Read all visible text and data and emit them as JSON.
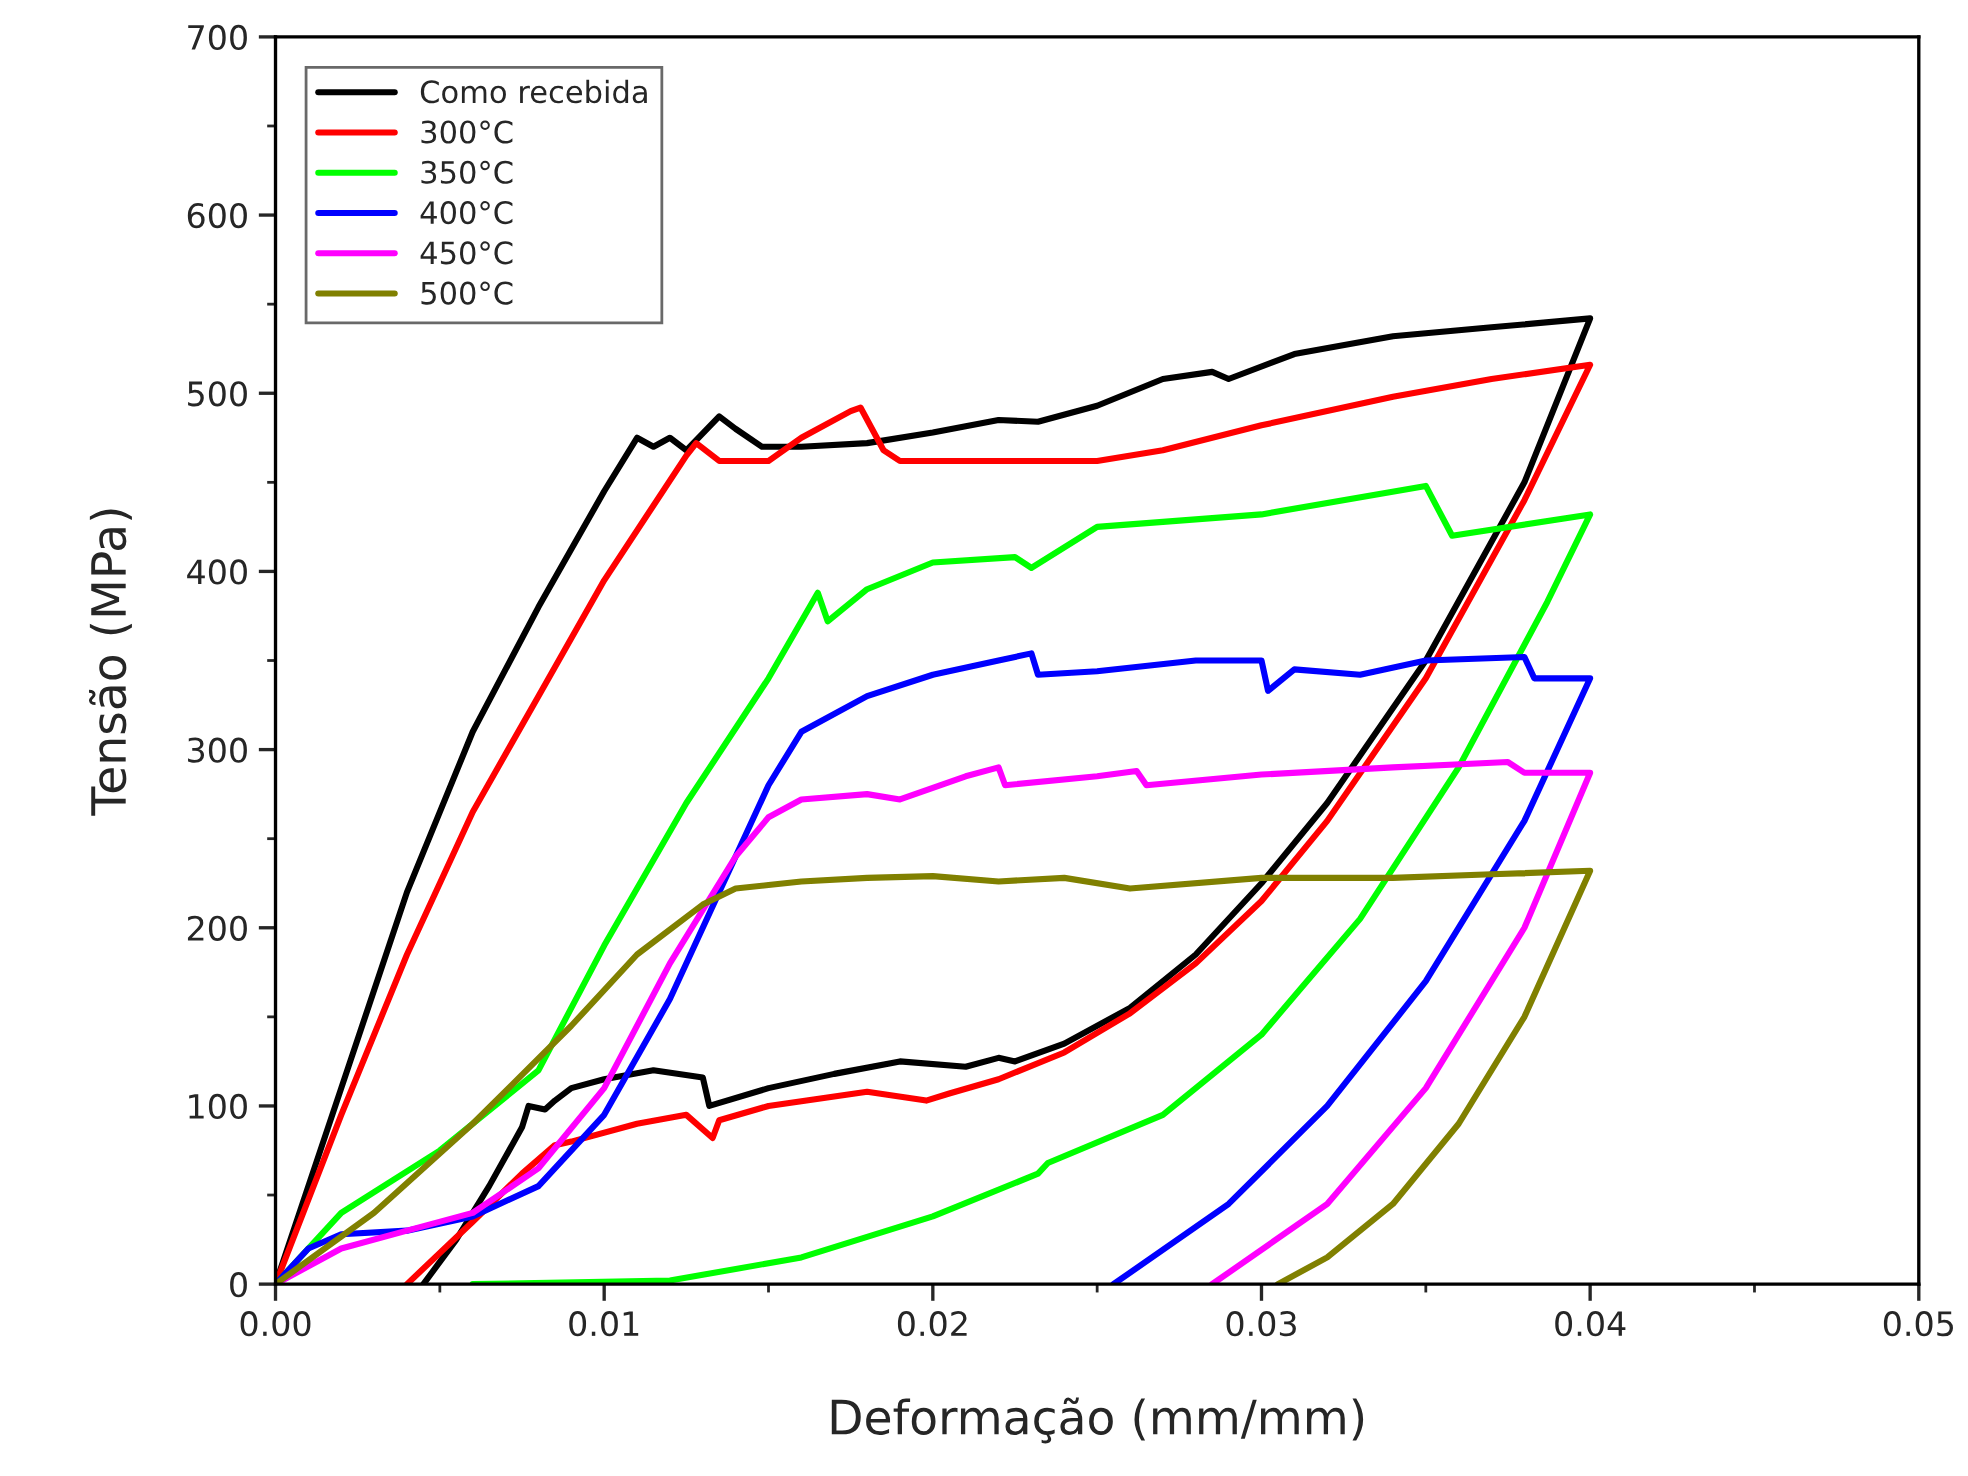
{
  "chart_data": {
    "type": "line",
    "xlabel": "Deformação (mm/mm)",
    "ylabel": "Tensão (MPa)",
    "xlim": [
      0,
      0.05
    ],
    "ylim": [
      0,
      700
    ],
    "xticks": [
      {
        "value": 0,
        "label": "0.00"
      },
      {
        "value": 0.01,
        "label": "0.01"
      },
      {
        "value": 0.02,
        "label": "0.02"
      },
      {
        "value": 0.03,
        "label": "0.03"
      },
      {
        "value": 0.04,
        "label": "0.04"
      },
      {
        "value": 0.05,
        "label": "0.05"
      }
    ],
    "yticks": [
      0,
      100,
      200,
      300,
      400,
      500,
      600,
      700
    ],
    "grid": false,
    "legend": "top left",
    "marker": "none",
    "line_style": "solid",
    "series": [
      {
        "name": "Como recebida",
        "color": "#000000",
        "x": [
          0,
          0.002,
          0.004,
          0.006,
          0.008,
          0.01,
          0.011,
          0.0115,
          0.012,
          0.0125,
          0.0135,
          0.014,
          0.0148,
          0.016,
          0.018,
          0.02,
          0.022,
          0.0232,
          0.025,
          0.027,
          0.0285,
          0.029,
          0.031,
          0.034,
          0.037,
          0.04,
          0.038,
          0.035,
          0.032,
          0.03,
          0.028,
          0.026,
          0.024,
          0.0225,
          0.022,
          0.021,
          0.019,
          0.017,
          0.015,
          0.0132,
          0.013,
          0.0115,
          0.01,
          0.009,
          0.0085,
          0.0082,
          0.0077,
          0.0075,
          0.0065,
          0.0055,
          0.0045
        ],
        "values": [
          0,
          110,
          220,
          310,
          380,
          445,
          475,
          470,
          475,
          468,
          487,
          480,
          470,
          470,
          472,
          478,
          485,
          484,
          493,
          508,
          512,
          508,
          522,
          532,
          537,
          542,
          450,
          350,
          270,
          225,
          185,
          155,
          135,
          125,
          127,
          122,
          125,
          118,
          110,
          100,
          116,
          120,
          115,
          110,
          103,
          98,
          100,
          88,
          55,
          25,
          0
        ]
      },
      {
        "name": "300°C",
        "color": "#ff0000",
        "x": [
          0,
          0.002,
          0.004,
          0.006,
          0.008,
          0.01,
          0.0125,
          0.0128,
          0.0135,
          0.015,
          0.016,
          0.0175,
          0.0178,
          0.0185,
          0.019,
          0.022,
          0.025,
          0.027,
          0.03,
          0.034,
          0.037,
          0.04,
          0.038,
          0.035,
          0.032,
          0.03,
          0.028,
          0.026,
          0.024,
          0.022,
          0.0205,
          0.0198,
          0.018,
          0.015,
          0.0135,
          0.0133,
          0.0125,
          0.011,
          0.009,
          0.0085,
          0.0075,
          0.006,
          0.004
        ],
        "values": [
          0,
          95,
          185,
          265,
          330,
          395,
          465,
          472,
          462,
          462,
          475,
          490,
          492,
          468,
          462,
          462,
          462,
          468,
          482,
          498,
          508,
          516,
          440,
          340,
          260,
          215,
          180,
          152,
          130,
          115,
          107,
          103,
          108,
          100,
          92,
          82,
          95,
          90,
          80,
          78,
          62,
          35,
          0
        ]
      },
      {
        "name": "350°C",
        "color": "#00ff00",
        "x": [
          0,
          0.002,
          0.005,
          0.008,
          0.01,
          0.0125,
          0.015,
          0.0165,
          0.0168,
          0.018,
          0.02,
          0.0225,
          0.023,
          0.025,
          0.03,
          0.035,
          0.0358,
          0.04,
          0.0387,
          0.036,
          0.033,
          0.03,
          0.027,
          0.0235,
          0.0232,
          0.02,
          0.016,
          0.012,
          0.006
        ],
        "values": [
          0,
          40,
          75,
          120,
          190,
          270,
          340,
          388,
          372,
          390,
          405,
          408,
          402,
          425,
          432,
          448,
          420,
          432,
          383,
          290,
          205,
          140,
          95,
          68,
          62,
          38,
          15,
          2,
          0
        ]
      },
      {
        "name": "400°C",
        "color": "#0000ff",
        "x": [
          0,
          0.001,
          0.002,
          0.004,
          0.006,
          0.008,
          0.01,
          0.012,
          0.014,
          0.015,
          0.016,
          0.018,
          0.02,
          0.022,
          0.023,
          0.0232,
          0.025,
          0.028,
          0.03,
          0.0302,
          0.031,
          0.033,
          0.035,
          0.038,
          0.0383,
          0.04,
          0.038,
          0.035,
          0.032,
          0.029,
          0.0255
        ],
        "values": [
          0,
          20,
          28,
          30,
          38,
          55,
          95,
          160,
          240,
          280,
          310,
          330,
          342,
          350,
          354,
          342,
          344,
          350,
          350,
          333,
          345,
          342,
          350,
          352,
          340,
          340,
          260,
          170,
          100,
          45,
          0
        ]
      },
      {
        "name": "450°C",
        "color": "#ff00ff",
        "x": [
          0,
          0.002,
          0.004,
          0.006,
          0.008,
          0.01,
          0.012,
          0.014,
          0.015,
          0.016,
          0.018,
          0.019,
          0.021,
          0.022,
          0.0222,
          0.025,
          0.0262,
          0.0265,
          0.03,
          0.034,
          0.0375,
          0.038,
          0.04,
          0.038,
          0.035,
          0.032,
          0.0285
        ],
        "values": [
          0,
          20,
          30,
          40,
          65,
          110,
          180,
          240,
          262,
          272,
          275,
          272,
          285,
          290,
          280,
          285,
          288,
          280,
          286,
          290,
          293,
          287,
          287,
          200,
          110,
          45,
          0
        ]
      },
      {
        "name": "500°C",
        "color": "#808000",
        "x": [
          0,
          0.003,
          0.006,
          0.009,
          0.011,
          0.013,
          0.014,
          0.015,
          0.016,
          0.018,
          0.02,
          0.022,
          0.024,
          0.026,
          0.03,
          0.034,
          0.037,
          0.04,
          0.038,
          0.036,
          0.034,
          0.032,
          0.0305
        ],
        "values": [
          0,
          40,
          90,
          145,
          185,
          213,
          222,
          224,
          226,
          228,
          229,
          226,
          228,
          222,
          228,
          228,
          230,
          232,
          150,
          90,
          45,
          15,
          0
        ]
      }
    ]
  }
}
